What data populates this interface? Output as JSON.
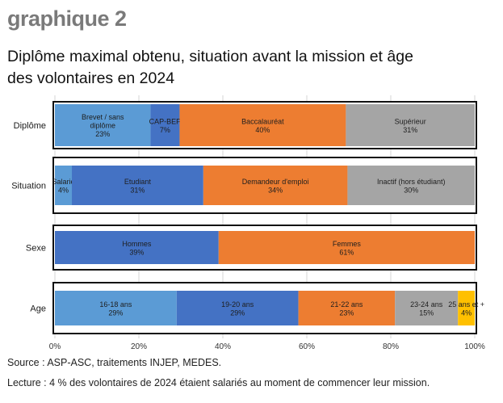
{
  "header": {
    "graph_number": "graphique 2",
    "title_line1": "Diplôme maximal obtenu, situation avant la mission et âge",
    "title_line2": "des volontaires en 2024"
  },
  "footer": {
    "source": "Source : ASP-ASC, traitements INJEP, MEDES.",
    "lecture": "Lecture :  4 % des volontaires de 2024 étaient salariés au moment de commencer leur mission."
  },
  "colors": {
    "light_blue": "#5b9bd5",
    "blue": "#4472c4",
    "orange": "#ed7d31",
    "gray": "#a5a5a5",
    "yellow": "#ffc000"
  },
  "chart_data": {
    "type": "bar",
    "orientation": "horizontal-stacked-100",
    "xlim": [
      0,
      100
    ],
    "x_ticks": [
      "0%",
      "20%",
      "40%",
      "60%",
      "80%",
      "100%"
    ],
    "grid": true,
    "categories": [
      "Diplôme",
      "Situation",
      "Sexe",
      "Age"
    ],
    "rows": [
      {
        "category": "Diplôme",
        "segments": [
          {
            "label": [
              "Brevet / sans",
              "diplôme"
            ],
            "value_label": "23%",
            "value": 23,
            "color": "#5b9bd5"
          },
          {
            "label": [
              "CAP-BEP"
            ],
            "value_label": "7%",
            "value": 7,
            "color": "#4472c4"
          },
          {
            "label": [
              "Baccalauréat"
            ],
            "value_label": "40%",
            "value": 40,
            "color": "#ed7d31"
          },
          {
            "label": [
              "Supérieur"
            ],
            "value_label": "31%",
            "value": 31,
            "color": "#a5a5a5"
          }
        ]
      },
      {
        "category": "Situation",
        "segments": [
          {
            "label": [
              "Salarié"
            ],
            "value_label": "4%",
            "value": 4,
            "color": "#5b9bd5"
          },
          {
            "label": [
              "Etudiant"
            ],
            "value_label": "31%",
            "value": 31,
            "color": "#4472c4"
          },
          {
            "label": [
              "Demandeur d'emploi"
            ],
            "value_label": "34%",
            "value": 34,
            "color": "#ed7d31"
          },
          {
            "label": [
              "Inactif (hors étudiant)"
            ],
            "value_label": "30%",
            "value": 30,
            "color": "#a5a5a5"
          }
        ]
      },
      {
        "category": "Sexe",
        "segments": [
          {
            "label": [
              "Hommes"
            ],
            "value_label": "39%",
            "value": 39,
            "color": "#4472c4"
          },
          {
            "label": [
              "Femmes"
            ],
            "value_label": "61%",
            "value": 61,
            "color": "#ed7d31"
          }
        ]
      },
      {
        "category": "Age",
        "segments": [
          {
            "label": [
              "16-18 ans"
            ],
            "value_label": "29%",
            "value": 29,
            "color": "#5b9bd5"
          },
          {
            "label": [
              "19-20 ans"
            ],
            "value_label": "29%",
            "value": 29,
            "color": "#4472c4"
          },
          {
            "label": [
              "21-22 ans"
            ],
            "value_label": "23%",
            "value": 23,
            "color": "#ed7d31"
          },
          {
            "label": [
              "23-24 ans"
            ],
            "value_label": "15%",
            "value": 15,
            "color": "#a5a5a5"
          },
          {
            "label": [
              "25 ans et +"
            ],
            "value_label": "4%",
            "value": 4,
            "color": "#ffc000"
          }
        ]
      }
    ]
  }
}
